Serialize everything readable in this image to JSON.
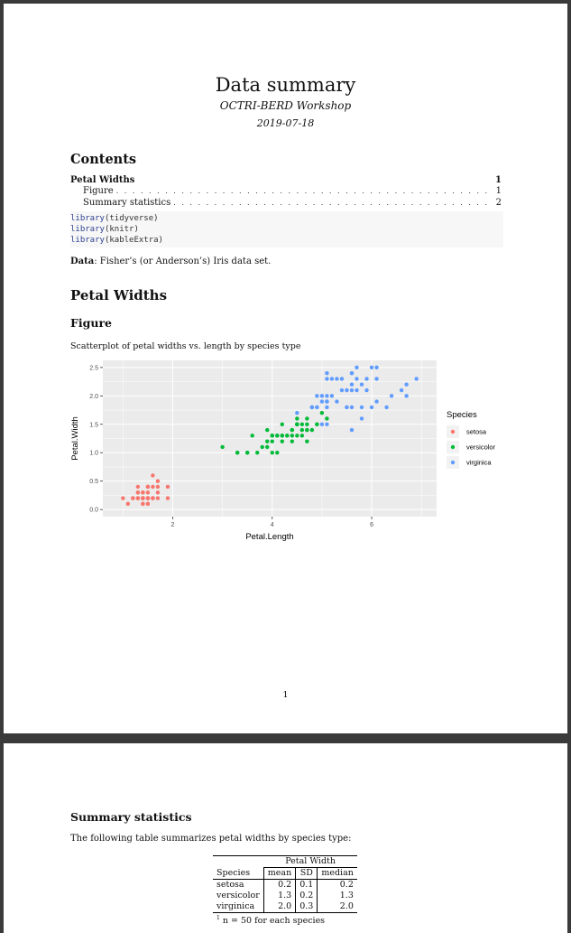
{
  "doc": {
    "title": "Data summary",
    "subtitle": "OCTRI-BERD Workshop",
    "date": "2019-07-18"
  },
  "toc": {
    "heading": "Contents",
    "entries": [
      {
        "label": "Petal Widths",
        "page": "1"
      },
      {
        "label": "Figure",
        "page": "1"
      },
      {
        "label": "Summary statistics",
        "page": "2"
      }
    ]
  },
  "code": {
    "lines": [
      {
        "fn": "library",
        "arg": "(tidyverse)"
      },
      {
        "fn": "library",
        "arg": "(knitr)"
      },
      {
        "fn": "library",
        "arg": "(kableExtra)"
      }
    ]
  },
  "data_line": {
    "label": "Data",
    "text": ": Fisher’s (or Anderson’s) Iris data set."
  },
  "section": {
    "heading": "Petal Widths"
  },
  "figure": {
    "heading": "Figure",
    "caption": "Scatterplot of petal widths vs. length by species type"
  },
  "colors": {
    "setosa": "#F8766D",
    "versicolor": "#00BA38",
    "virginica": "#619CFF",
    "panel": "#EBEBEB"
  },
  "chart_data": {
    "type": "scatter",
    "title": "",
    "xlabel": "Petal.Length",
    "ylabel": "Petal.Width",
    "xlim": [
      0.9,
      7.0
    ],
    "ylim": [
      0.0,
      2.5
    ],
    "xticks": [
      2,
      4,
      6
    ],
    "yticks": [
      0.0,
      0.5,
      1.0,
      1.5,
      2.0,
      2.5
    ],
    "ytick_labels": [
      "0.0",
      "0.5",
      "1.0",
      "1.5",
      "2.0",
      "2.5"
    ],
    "grid": true,
    "legend_title": "Species",
    "legend_position": "right",
    "series": [
      {
        "name": "setosa",
        "color": "#F8766D",
        "points": [
          [
            1.4,
            0.2
          ],
          [
            1.4,
            0.2
          ],
          [
            1.3,
            0.2
          ],
          [
            1.5,
            0.2
          ],
          [
            1.4,
            0.2
          ],
          [
            1.7,
            0.4
          ],
          [
            1.4,
            0.3
          ],
          [
            1.5,
            0.2
          ],
          [
            1.4,
            0.2
          ],
          [
            1.5,
            0.1
          ],
          [
            1.5,
            0.2
          ],
          [
            1.6,
            0.2
          ],
          [
            1.4,
            0.1
          ],
          [
            1.1,
            0.1
          ],
          [
            1.2,
            0.2
          ],
          [
            1.5,
            0.4
          ],
          [
            1.3,
            0.4
          ],
          [
            1.4,
            0.3
          ],
          [
            1.7,
            0.3
          ],
          [
            1.5,
            0.3
          ],
          [
            1.7,
            0.2
          ],
          [
            1.5,
            0.4
          ],
          [
            1.0,
            0.2
          ],
          [
            1.7,
            0.5
          ],
          [
            1.9,
            0.2
          ],
          [
            1.6,
            0.2
          ],
          [
            1.6,
            0.4
          ],
          [
            1.5,
            0.2
          ],
          [
            1.4,
            0.2
          ],
          [
            1.6,
            0.2
          ],
          [
            1.6,
            0.2
          ],
          [
            1.5,
            0.4
          ],
          [
            1.5,
            0.1
          ],
          [
            1.4,
            0.2
          ],
          [
            1.5,
            0.2
          ],
          [
            1.2,
            0.2
          ],
          [
            1.3,
            0.2
          ],
          [
            1.4,
            0.1
          ],
          [
            1.3,
            0.2
          ],
          [
            1.5,
            0.2
          ],
          [
            1.3,
            0.3
          ],
          [
            1.3,
            0.3
          ],
          [
            1.3,
            0.2
          ],
          [
            1.6,
            0.6
          ],
          [
            1.9,
            0.4
          ],
          [
            1.4,
            0.3
          ],
          [
            1.6,
            0.2
          ],
          [
            1.4,
            0.2
          ],
          [
            1.5,
            0.2
          ],
          [
            1.4,
            0.2
          ]
        ]
      },
      {
        "name": "versicolor",
        "color": "#00BA38",
        "points": [
          [
            4.7,
            1.4
          ],
          [
            4.5,
            1.5
          ],
          [
            4.9,
            1.5
          ],
          [
            4.0,
            1.3
          ],
          [
            4.6,
            1.5
          ],
          [
            4.5,
            1.3
          ],
          [
            4.7,
            1.6
          ],
          [
            3.3,
            1.0
          ],
          [
            4.6,
            1.3
          ],
          [
            3.9,
            1.4
          ],
          [
            3.5,
            1.0
          ],
          [
            4.2,
            1.5
          ],
          [
            4.0,
            1.0
          ],
          [
            4.7,
            1.4
          ],
          [
            3.6,
            1.3
          ],
          [
            4.4,
            1.4
          ],
          [
            4.5,
            1.5
          ],
          [
            4.1,
            1.0
          ],
          [
            4.5,
            1.5
          ],
          [
            3.9,
            1.1
          ],
          [
            4.8,
            1.8
          ],
          [
            4.0,
            1.3
          ],
          [
            4.9,
            1.5
          ],
          [
            4.7,
            1.2
          ],
          [
            4.3,
            1.3
          ],
          [
            4.4,
            1.4
          ],
          [
            4.8,
            1.4
          ],
          [
            5.0,
            1.7
          ],
          [
            4.5,
            1.5
          ],
          [
            3.5,
            1.0
          ],
          [
            3.8,
            1.1
          ],
          [
            3.7,
            1.0
          ],
          [
            3.9,
            1.2
          ],
          [
            5.1,
            1.6
          ],
          [
            4.5,
            1.5
          ],
          [
            4.5,
            1.6
          ],
          [
            4.7,
            1.5
          ],
          [
            4.4,
            1.3
          ],
          [
            4.1,
            1.3
          ],
          [
            4.0,
            1.3
          ],
          [
            4.4,
            1.2
          ],
          [
            4.6,
            1.4
          ],
          [
            4.0,
            1.2
          ],
          [
            3.3,
            1.0
          ],
          [
            4.2,
            1.3
          ],
          [
            4.2,
            1.2
          ],
          [
            4.2,
            1.3
          ],
          [
            4.3,
            1.3
          ],
          [
            3.0,
            1.1
          ],
          [
            4.1,
            1.3
          ]
        ]
      },
      {
        "name": "virginica",
        "color": "#619CFF",
        "points": [
          [
            6.0,
            2.5
          ],
          [
            5.1,
            1.9
          ],
          [
            5.9,
            2.1
          ],
          [
            5.6,
            1.8
          ],
          [
            5.8,
            2.2
          ],
          [
            6.6,
            2.1
          ],
          [
            4.5,
            1.7
          ],
          [
            6.3,
            1.8
          ],
          [
            5.8,
            1.8
          ],
          [
            6.1,
            2.5
          ],
          [
            5.1,
            2.0
          ],
          [
            5.3,
            1.9
          ],
          [
            5.5,
            2.1
          ],
          [
            5.0,
            2.0
          ],
          [
            5.1,
            2.4
          ],
          [
            5.3,
            2.3
          ],
          [
            5.5,
            1.8
          ],
          [
            6.7,
            2.2
          ],
          [
            6.9,
            2.3
          ],
          [
            5.0,
            1.5
          ],
          [
            5.7,
            2.3
          ],
          [
            4.9,
            2.0
          ],
          [
            6.7,
            2.0
          ],
          [
            4.9,
            1.8
          ],
          [
            5.7,
            2.1
          ],
          [
            6.0,
            1.8
          ],
          [
            4.8,
            1.8
          ],
          [
            4.9,
            1.8
          ],
          [
            5.6,
            2.1
          ],
          [
            5.8,
            1.6
          ],
          [
            6.1,
            1.9
          ],
          [
            6.4,
            2.0
          ],
          [
            5.6,
            2.2
          ],
          [
            5.1,
            1.5
          ],
          [
            5.6,
            1.4
          ],
          [
            6.1,
            2.3
          ],
          [
            5.6,
            2.4
          ],
          [
            5.5,
            1.8
          ],
          [
            4.8,
            1.8
          ],
          [
            5.4,
            2.1
          ],
          [
            5.6,
            2.4
          ],
          [
            5.1,
            2.3
          ],
          [
            5.1,
            1.9
          ],
          [
            5.9,
            2.3
          ],
          [
            5.7,
            2.5
          ],
          [
            5.2,
            2.3
          ],
          [
            5.0,
            1.9
          ],
          [
            5.2,
            2.0
          ],
          [
            5.4,
            2.3
          ],
          [
            5.1,
            1.8
          ]
        ]
      }
    ]
  },
  "page1": {
    "number": "1"
  },
  "summary": {
    "heading": "Summary statistics",
    "intro": "The following table summarizes petal widths by species type:",
    "table": {
      "group_header": "Petal Width",
      "columns": [
        "Species",
        "mean",
        "SD",
        "median"
      ],
      "rows": [
        [
          "setosa",
          "0.2",
          "0.1",
          "0.2"
        ],
        [
          "versicolor",
          "1.3",
          "0.2",
          "1.3"
        ],
        [
          "virginica",
          "2.0",
          "0.3",
          "2.0"
        ]
      ],
      "footnote_mark": "1",
      "footnote": "n = 50 for each species"
    }
  }
}
